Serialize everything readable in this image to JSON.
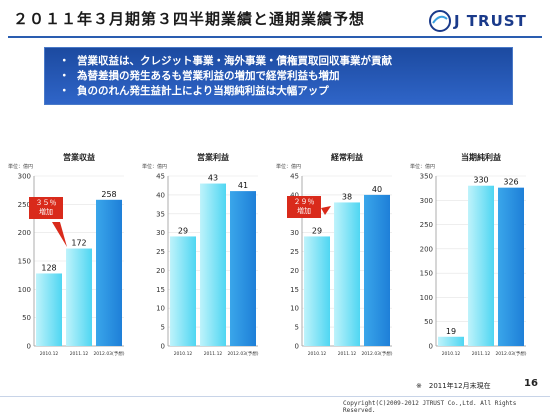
{
  "header": {
    "title": "２０１１年３月期第３四半期業績と通期業績予想",
    "logo_text": "J TRUST"
  },
  "bullets": [
    "営業収益は、クレジット事業・海外事業・債権買取回収事業が貢献",
    "為替差損の発生あるも営業利益の増加で経常利益も増加",
    "負ののれん発生益計上により当期純利益は大幅アップ"
  ],
  "bullet_marker": "・",
  "callouts": [
    {
      "pct": "３５％",
      "word": "増加"
    },
    {
      "pct": "２９％",
      "word": "増加"
    }
  ],
  "footer": {
    "asof": "※　2011年12月末現在",
    "page": "16",
    "copyright": "Copyright(C)2009-2012 JTRUST Co.,Ltd. All Rights Reserved."
  },
  "colors": {
    "bar_actual": "#4fd6f2",
    "bar_forecast": "#1e7fd8",
    "callout": "#d92a1b",
    "accent": "#2a5db0"
  },
  "chart_data": [
    {
      "type": "bar",
      "title": "営業収益",
      "unit": "単位：億円",
      "categories": [
        "2010.12",
        "2011.12",
        "2012.03(予想)"
      ],
      "values": [
        128,
        172,
        258
      ],
      "ylim": [
        0,
        300
      ],
      "yticks": [
        0,
        50,
        100,
        150,
        200,
        250,
        300
      ]
    },
    {
      "type": "bar",
      "title": "営業利益",
      "unit": "単位：億円",
      "categories": [
        "2010.12",
        "2011.12",
        "2012.03(予想)"
      ],
      "values": [
        29,
        43,
        41
      ],
      "ylim": [
        0,
        45
      ],
      "yticks": [
        0,
        5,
        10,
        15,
        20,
        25,
        30,
        35,
        40,
        45
      ]
    },
    {
      "type": "bar",
      "title": "経常利益",
      "unit": "単位：億円",
      "categories": [
        "2010.12",
        "2011.12",
        "2012.03(予想)"
      ],
      "values": [
        29,
        38,
        40
      ],
      "ylim": [
        0,
        45
      ],
      "yticks": [
        0,
        5,
        10,
        15,
        20,
        25,
        30,
        35,
        40,
        45
      ]
    },
    {
      "type": "bar",
      "title": "当期純利益",
      "unit": "単位：億円",
      "categories": [
        "2010.12",
        "2011.12",
        "2012.03(予想)"
      ],
      "values": [
        19,
        330,
        326
      ],
      "ylim": [
        0,
        350
      ],
      "yticks": [
        0,
        50,
        100,
        150,
        200,
        250,
        300,
        350
      ]
    }
  ]
}
